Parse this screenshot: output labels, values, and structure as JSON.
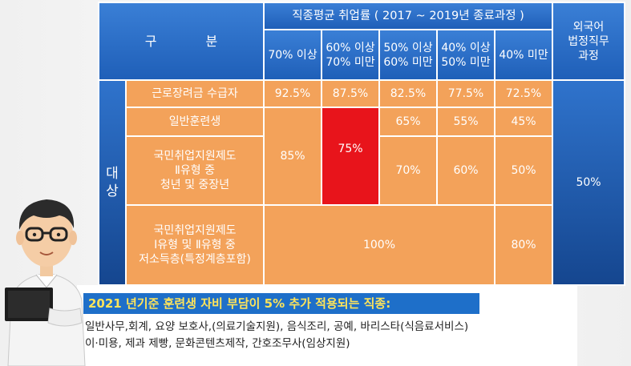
{
  "table": {
    "category_header": "구 분",
    "employment_header": "직종평균 취업률 ( 2017 ~ 2019년 종료과정 )",
    "foreign_header": "외국어\n법정직무\n과정",
    "rate_columns": [
      "70% 이상",
      "60% 이상\n70% 미만",
      "50% 이상\n60% 미만",
      "40% 이상\n50% 미만",
      "40% 미만"
    ],
    "target_label": "대\n상",
    "rows": [
      {
        "label": "근로장려금 수급자",
        "values": [
          "92.5%",
          "87.5%",
          "82.5%",
          "77.5%",
          "72.5%"
        ]
      },
      {
        "label": "일반훈련생",
        "values": [
          "65%",
          "55%",
          "45%"
        ]
      },
      {
        "label": "국민취업지원제도\nⅡ유형 중\n청년 및 중장년",
        "values": [
          "70%",
          "60%",
          "50%"
        ]
      },
      {
        "label": "국민취업지원제도\nⅠ유형 및 Ⅱ유형 중\n저소득층(특정계층포함)",
        "values": [
          "100%",
          "80%"
        ]
      }
    ],
    "merged_70": "85%",
    "merged_60": "75%",
    "foreign_value": "50%"
  },
  "banner": {
    "title": "2021 년기준 훈련생 자비 부담이 5% 추가 적용되는 직종:",
    "line1": "일반사무,회계, 요양 보호사,(의료기술지원), 음식조리, 공예, 바리스타(식음료서비스)",
    "line2": "이·미용, 제과 제빵, 문화콘텐츠제작, 간호조무사(임상지원)"
  },
  "colors": {
    "header_blue": "#2a6fcb",
    "row_orange": "#f3a25a",
    "highlight_red": "#e8141b",
    "banner_title_bg": "#1e6fc9",
    "banner_title_text": "#ffe45a"
  }
}
